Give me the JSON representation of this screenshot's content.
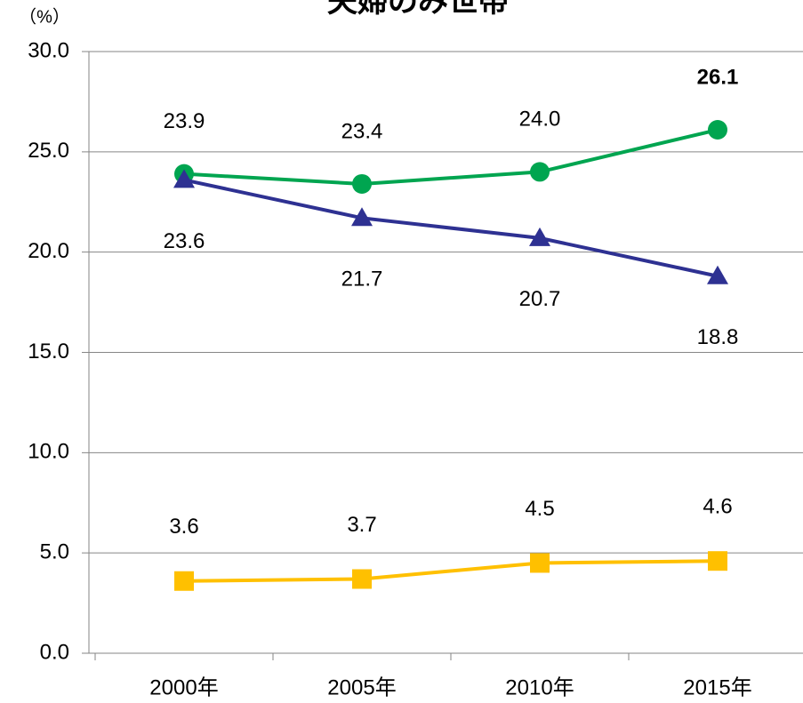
{
  "chart_data": {
    "type": "line",
    "title": "夫婦のみ世帯",
    "y_unit": "（%）",
    "categories": [
      "2000年",
      "2005年",
      "2010年",
      "2015年"
    ],
    "series": [
      {
        "color": "#00a550",
        "marker": "circle",
        "values": [
          23.9,
          23.4,
          24.0,
          26.1
        ],
        "value_labels": [
          "23.9",
          "23.4",
          "24.0",
          "26.1"
        ],
        "label_colors": [
          "#000000",
          "#000000",
          "#000000",
          "#ff0000"
        ]
      },
      {
        "color": "#2e3192",
        "marker": "triangle",
        "values": [
          23.6,
          21.7,
          20.7,
          18.8
        ]
      },
      {
        "color": "#ffc000",
        "marker": "square",
        "values": [
          3.6,
          3.7,
          4.5,
          4.6
        ]
      }
    ],
    "ylim": [
      0,
      30
    ],
    "yticks": [
      {
        "value": 0,
        "label": "0.0"
      },
      {
        "value": 5,
        "label": "5.0"
      },
      {
        "value": 10,
        "label": "10.0"
      },
      {
        "value": 15,
        "label": "15.0"
      },
      {
        "value": 20,
        "label": "20.0"
      },
      {
        "value": 25,
        "label": "25.0"
      },
      {
        "value": 30,
        "label": "30.0"
      }
    ],
    "grid": true
  }
}
